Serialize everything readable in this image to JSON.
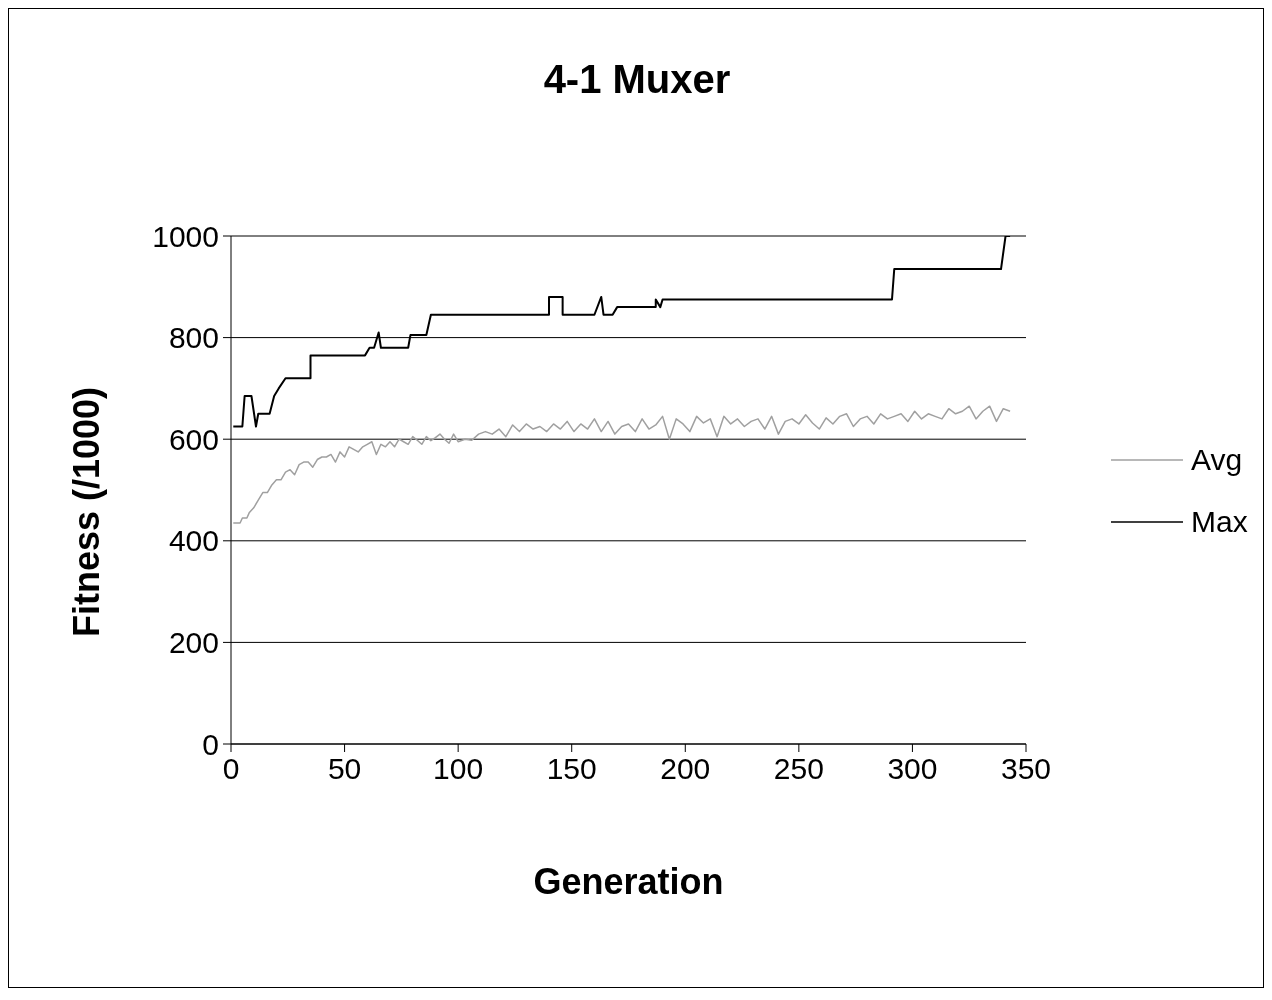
{
  "chart_data": {
    "type": "line",
    "title": "4-1 Muxer",
    "xlabel": "Generation",
    "ylabel": "Fitness (/1000)",
    "xlim": [
      0,
      350
    ],
    "xticks": [
      0,
      50,
      100,
      150,
      200,
      250,
      300,
      350
    ],
    "ylim": [
      0,
      1000
    ],
    "yticks": [
      0,
      200,
      400,
      600,
      800,
      1000
    ],
    "grid": "y",
    "legend": "right",
    "marker": "none",
    "line_style": "solid",
    "series": [
      {
        "name": "Avg",
        "color": "#a0a0a0",
        "x": [
          1,
          4,
          5,
          7,
          8,
          10,
          12,
          14,
          16,
          18,
          20,
          22,
          24,
          26,
          28,
          30,
          32,
          34,
          36,
          38,
          40,
          42,
          44,
          46,
          48,
          50,
          52,
          54,
          56,
          58,
          60,
          62,
          64,
          66,
          68,
          70,
          72,
          74,
          76,
          78,
          80,
          82,
          84,
          86,
          88,
          90,
          92,
          94,
          96,
          98,
          100,
          103,
          106,
          109,
          112,
          115,
          118,
          121,
          124,
          127,
          130,
          133,
          136,
          139,
          142,
          145,
          148,
          151,
          154,
          157,
          160,
          163,
          166,
          169,
          172,
          175,
          178,
          181,
          184,
          187,
          190,
          193,
          196,
          199,
          202,
          205,
          208,
          211,
          214,
          217,
          220,
          223,
          226,
          229,
          232,
          235,
          238,
          241,
          244,
          247,
          250,
          253,
          256,
          259,
          262,
          265,
          268,
          271,
          274,
          277,
          280,
          283,
          286,
          289,
          292,
          295,
          298,
          301,
          304,
          307,
          310,
          313,
          316,
          319,
          322,
          325,
          328,
          331,
          334,
          337,
          340,
          343
        ],
        "values": [
          435,
          435,
          445,
          445,
          455,
          465,
          480,
          495,
          495,
          510,
          520,
          520,
          535,
          540,
          530,
          550,
          555,
          555,
          545,
          560,
          565,
          565,
          570,
          555,
          575,
          565,
          585,
          580,
          575,
          585,
          590,
          595,
          570,
          590,
          585,
          595,
          585,
          600,
          595,
          590,
          605,
          598,
          590,
          605,
          597,
          603,
          610,
          600,
          592,
          610,
          595,
          600,
          598,
          610,
          615,
          610,
          620,
          605,
          628,
          615,
          630,
          620,
          625,
          615,
          630,
          620,
          635,
          615,
          630,
          620,
          640,
          615,
          635,
          610,
          625,
          630,
          615,
          640,
          620,
          628,
          645,
          600,
          640,
          630,
          615,
          645,
          632,
          640,
          605,
          645,
          630,
          640,
          625,
          635,
          640,
          620,
          645,
          610,
          635,
          640,
          630,
          648,
          632,
          620,
          642,
          630,
          645,
          650,
          625,
          640,
          645,
          630,
          650,
          640,
          645,
          650,
          635,
          655,
          640,
          650,
          645,
          640,
          660,
          650,
          655,
          665,
          640,
          655,
          665,
          635,
          660,
          655
        ]
      },
      {
        "name": "Max",
        "color": "#000000",
        "x": [
          1,
          5,
          6,
          9,
          11,
          12,
          17,
          19,
          21,
          24,
          35,
          35,
          59,
          61,
          63,
          65,
          66,
          78,
          79,
          86,
          88,
          140,
          140,
          146,
          146,
          160,
          163,
          164,
          168,
          170,
          187,
          187,
          189,
          190,
          291,
          292,
          339,
          341,
          343
        ],
        "values": [
          625,
          625,
          685,
          685,
          625,
          650,
          650,
          685,
          700,
          720,
          720,
          765,
          765,
          780,
          780,
          810,
          780,
          780,
          805,
          805,
          845,
          845,
          880,
          880,
          845,
          845,
          880,
          845,
          845,
          860,
          860,
          875,
          860,
          875,
          875,
          935,
          935,
          1000,
          1000
        ]
      }
    ]
  }
}
